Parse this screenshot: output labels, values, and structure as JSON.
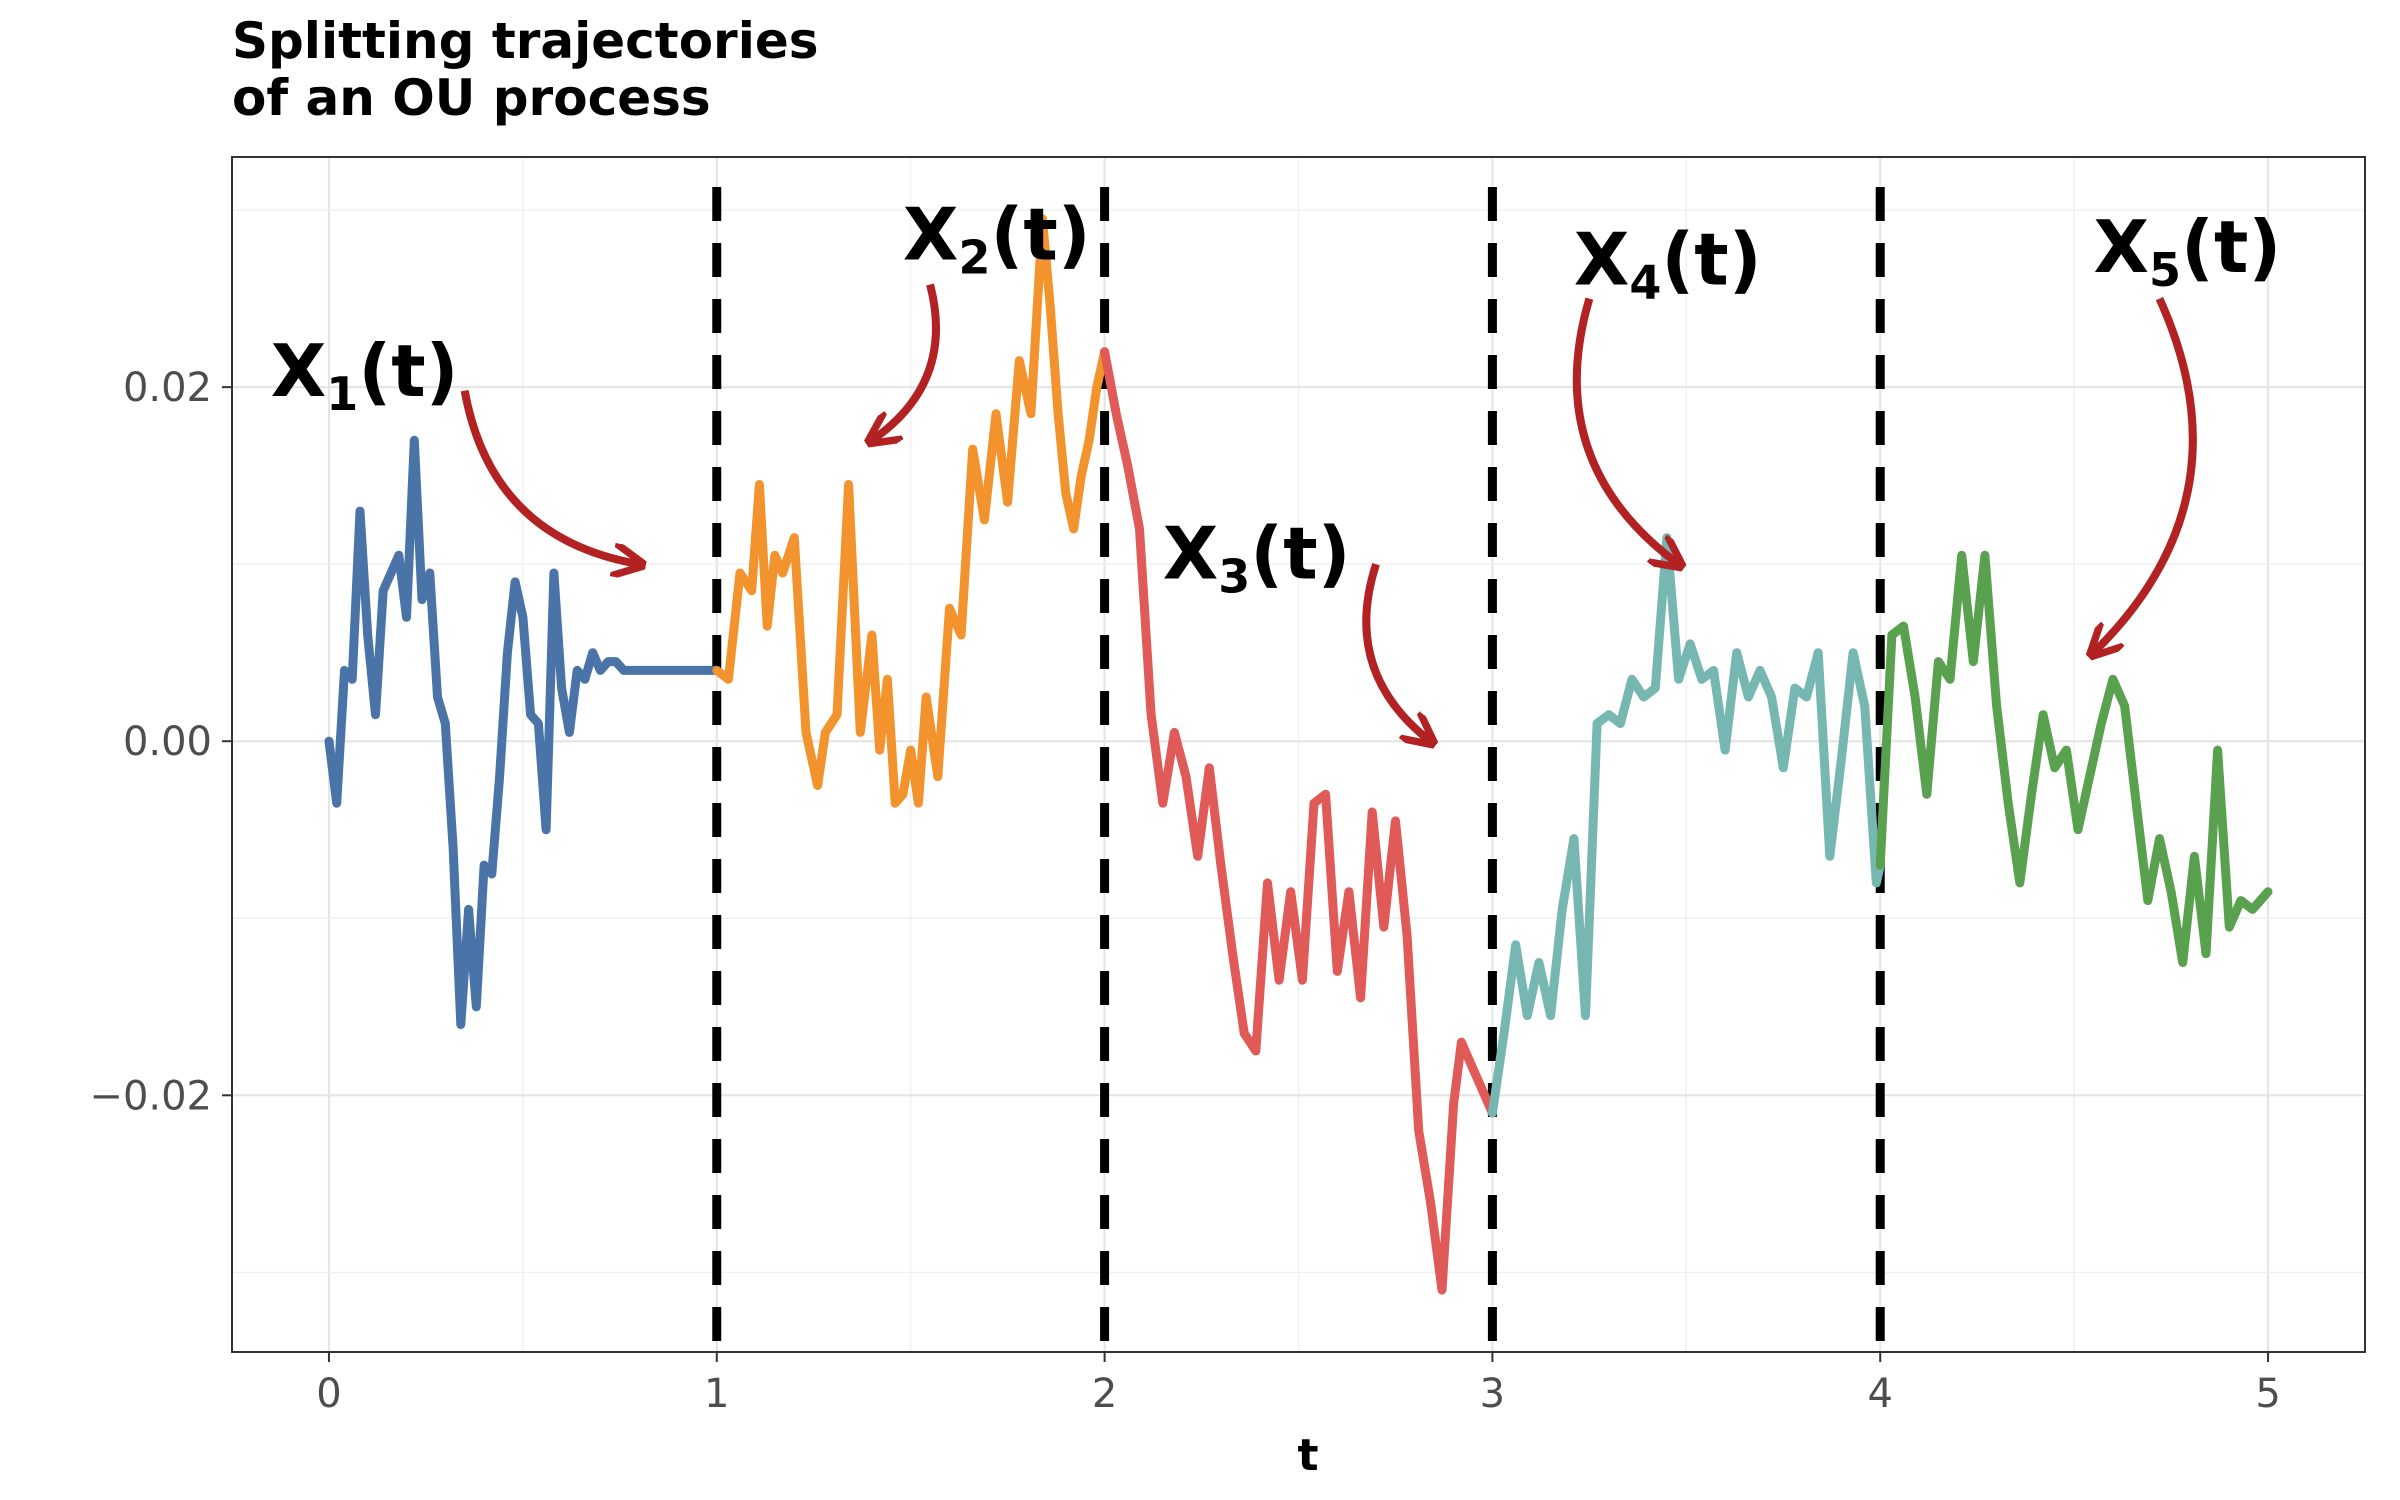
{
  "chart_data": {
    "type": "line",
    "title_lines": [
      "Splitting trajectories",
      "of an OU process"
    ],
    "xlabel": "t",
    "ylabel": "",
    "xlim": [
      -0.25,
      5.25
    ],
    "ylim": [
      -0.0345,
      0.033
    ],
    "xticks": [
      0,
      1,
      2,
      3,
      4,
      5
    ],
    "xtick_labels": [
      "0",
      "1",
      "2",
      "3",
      "4",
      "5"
    ],
    "yticks": [
      -0.02,
      0.0,
      0.02
    ],
    "ytick_labels": [
      "−0.02",
      "0.00",
      "0.02"
    ],
    "grid": true,
    "split_lines_x": [
      1,
      2,
      3,
      4
    ],
    "series": [
      {
        "color": "#4a74a8",
        "x": [
          0.0,
          0.02,
          0.04,
          0.06,
          0.08,
          0.1,
          0.12,
          0.14,
          0.16,
          0.18,
          0.2,
          0.22,
          0.24,
          0.26,
          0.28,
          0.3,
          0.32,
          0.34,
          0.36,
          0.38,
          0.4,
          0.42,
          0.44,
          0.46,
          0.48,
          0.5,
          0.52,
          0.54,
          0.56,
          0.58,
          0.6,
          0.62,
          0.64,
          0.66,
          0.68,
          0.7,
          0.72,
          0.74,
          0.76,
          0.78,
          0.8,
          0.82,
          0.84,
          0.86,
          0.88,
          0.9,
          0.92,
          0.94,
          0.96,
          0.98,
          1.0
        ],
        "y": [
          0.0,
          -0.0035,
          0.004,
          0.0035,
          0.013,
          0.006,
          0.0015,
          0.0085,
          0.0095,
          0.0105,
          0.007,
          0.017,
          0.008,
          0.0095,
          0.0025,
          0.001,
          -0.006,
          -0.016,
          -0.0095,
          -0.015,
          -0.007,
          -0.0075,
          -0.002,
          0.005,
          0.009,
          0.007,
          0.0015,
          0.001,
          -0.005,
          0.0095,
          0.003,
          0.0005,
          0.004,
          0.0035,
          0.005,
          0.004,
          0.0045,
          0.0045,
          0.004,
          0.004,
          0.004,
          0.004,
          0.004,
          0.004,
          0.004,
          0.004,
          0.004,
          0.004,
          0.004,
          0.004,
          0.004
        ]
      },
      {
        "color": "#f2932d",
        "x": [
          1.0,
          1.03,
          1.06,
          1.09,
          1.11,
          1.13,
          1.15,
          1.17,
          1.2,
          1.23,
          1.26,
          1.28,
          1.31,
          1.34,
          1.37,
          1.4,
          1.42,
          1.44,
          1.46,
          1.48,
          1.5,
          1.52,
          1.54,
          1.57,
          1.6,
          1.63,
          1.66,
          1.69,
          1.72,
          1.75,
          1.78,
          1.81,
          1.84,
          1.86,
          1.88,
          1.9,
          1.92,
          1.94,
          1.96,
          1.98,
          2.0
        ],
        "y": [
          0.004,
          0.0035,
          0.0095,
          0.0085,
          0.0145,
          0.0065,
          0.0105,
          0.0095,
          0.0115,
          0.0005,
          -0.0025,
          0.0005,
          0.0015,
          0.0145,
          0.0005,
          0.006,
          -0.0005,
          0.0035,
          -0.0035,
          -0.003,
          -0.0005,
          -0.0035,
          0.0025,
          -0.002,
          0.0075,
          0.006,
          0.0165,
          0.0125,
          0.0185,
          0.0135,
          0.0215,
          0.0185,
          0.0295,
          0.0245,
          0.0185,
          0.014,
          0.012,
          0.015,
          0.017,
          0.02,
          0.022
        ]
      },
      {
        "color": "#e05a58",
        "x": [
          2.0,
          2.03,
          2.06,
          2.09,
          2.12,
          2.15,
          2.18,
          2.21,
          2.24,
          2.27,
          2.3,
          2.33,
          2.36,
          2.39,
          2.42,
          2.45,
          2.48,
          2.51,
          2.54,
          2.57,
          2.6,
          2.63,
          2.66,
          2.69,
          2.72,
          2.75,
          2.78,
          2.81,
          2.84,
          2.87,
          2.9,
          2.92,
          2.94,
          2.96,
          2.98,
          3.0
        ],
        "y": [
          0.022,
          0.0185,
          0.0155,
          0.012,
          0.0015,
          -0.0035,
          0.0005,
          -0.002,
          -0.0065,
          -0.0015,
          -0.007,
          -0.012,
          -0.0165,
          -0.0175,
          -0.008,
          -0.0135,
          -0.0085,
          -0.0135,
          -0.0035,
          -0.003,
          -0.013,
          -0.0085,
          -0.0145,
          -0.004,
          -0.0105,
          -0.0045,
          -0.011,
          -0.022,
          -0.026,
          -0.031,
          -0.0205,
          -0.017,
          -0.018,
          -0.019,
          -0.02,
          -0.021
        ]
      },
      {
        "color": "#76b7b2",
        "x": [
          3.0,
          3.03,
          3.06,
          3.09,
          3.12,
          3.15,
          3.18,
          3.21,
          3.24,
          3.27,
          3.3,
          3.33,
          3.36,
          3.39,
          3.42,
          3.45,
          3.48,
          3.51,
          3.54,
          3.57,
          3.6,
          3.63,
          3.66,
          3.69,
          3.72,
          3.75,
          3.78,
          3.81,
          3.84,
          3.87,
          3.9,
          3.93,
          3.96,
          3.99,
          4.0
        ],
        "y": [
          -0.021,
          -0.0165,
          -0.0115,
          -0.0155,
          -0.0125,
          -0.0155,
          -0.0095,
          -0.0055,
          -0.0155,
          0.001,
          0.0015,
          0.001,
          0.0035,
          0.0025,
          0.003,
          0.0115,
          0.0035,
          0.0055,
          0.0035,
          0.004,
          -0.0005,
          0.005,
          0.0025,
          0.004,
          0.0025,
          -0.0015,
          0.003,
          0.0025,
          0.005,
          -0.0065,
          -0.001,
          0.005,
          0.002,
          -0.008,
          -0.007
        ]
      },
      {
        "color": "#59a14f",
        "x": [
          4.0,
          4.03,
          4.06,
          4.09,
          4.12,
          4.15,
          4.18,
          4.21,
          4.24,
          4.27,
          4.3,
          4.33,
          4.36,
          4.39,
          4.42,
          4.45,
          4.48,
          4.51,
          4.54,
          4.57,
          4.6,
          4.63,
          4.66,
          4.69,
          4.72,
          4.75,
          4.78,
          4.81,
          4.84,
          4.87,
          4.9,
          4.93,
          4.96,
          4.98,
          5.0
        ],
        "y": [
          -0.007,
          0.006,
          0.0065,
          0.0025,
          -0.003,
          0.0045,
          0.0035,
          0.0105,
          0.0045,
          0.0105,
          0.002,
          -0.0035,
          -0.008,
          -0.003,
          0.0015,
          -0.0015,
          -0.0005,
          -0.005,
          -0.002,
          0.001,
          0.0035,
          0.002,
          -0.0035,
          -0.009,
          -0.0055,
          -0.0085,
          -0.0125,
          -0.0065,
          -0.012,
          -0.0005,
          -0.0105,
          -0.009,
          -0.0095,
          -0.009,
          -0.0085
        ]
      }
    ],
    "annotations": [
      {
        "base": "X",
        "sub": "1",
        "tail": "(t)",
        "anchor_x": -0.15,
        "anchor_y": 0.0195,
        "arrow": {
          "from": [
            0.35,
            0.0198
          ],
          "to": [
            0.8,
            0.01
          ]
        }
      },
      {
        "base": "X",
        "sub": "2",
        "tail": "(t)",
        "anchor_x": 1.48,
        "anchor_y": 0.0272,
        "arrow": {
          "from": [
            1.55,
            0.0258
          ],
          "to": [
            1.4,
            0.017
          ]
        }
      },
      {
        "base": "X",
        "sub": "3",
        "tail": "(t)",
        "anchor_x": 2.15,
        "anchor_y": 0.0092,
        "arrow": {
          "from": [
            2.7,
            0.01
          ],
          "to": [
            2.84,
            0.0
          ]
        }
      },
      {
        "base": "X",
        "sub": "4",
        "tail": "(t)",
        "anchor_x": 3.21,
        "anchor_y": 0.0258,
        "arrow": {
          "from": [
            3.25,
            0.025
          ],
          "to": [
            3.48,
            0.01
          ]
        }
      },
      {
        "base": "X",
        "sub": "5",
        "tail": "(t)",
        "anchor_x": 4.55,
        "anchor_y": 0.0265,
        "arrow": {
          "from": [
            4.72,
            0.025
          ],
          "to": [
            4.55,
            0.005
          ]
        }
      }
    ],
    "arrow_color": "#b22222"
  }
}
